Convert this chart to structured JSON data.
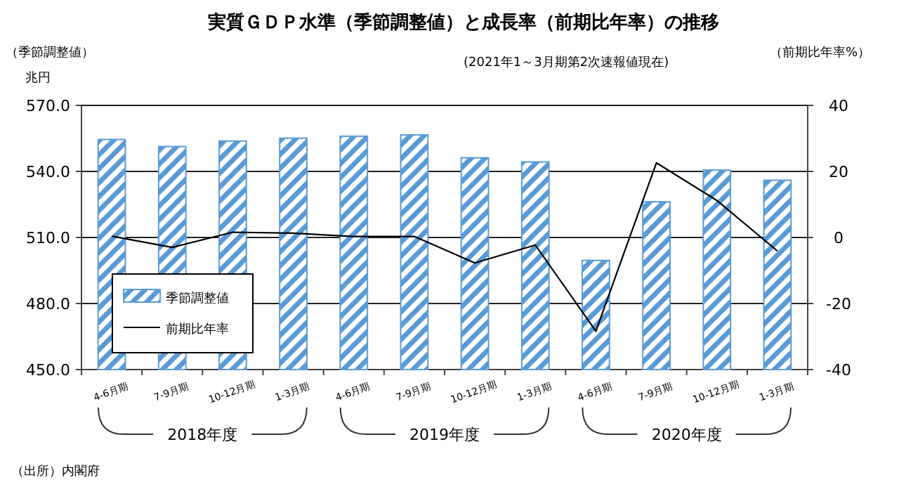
{
  "chart_data": {
    "type": "bar",
    "title": "実質ＧＤＰ水準（季節調整値）と成長率（前期比年率）の推移",
    "ylabel": "（季節調整値）",
    "y2label": "（前期比年率%）",
    "annotations": [
      "兆円",
      "(2021年1～3月期第2次速報値現在)",
      "2018年度",
      "2019年度",
      "2020年度",
      "（出所）内閣府"
    ],
    "categories": [
      "4-6月期",
      "7-9月期",
      "10-12月期",
      "1-3月期",
      "4-6月期",
      "7-9月期",
      "10-12月期",
      "1-3月期",
      "4-6月期",
      "7-9月期",
      "10-12月期",
      "1-3月期"
    ],
    "series": [
      {
        "name": "季節調整値",
        "color": "#5b9bd5",
        "values": [
          554.5,
          551.3,
          553.8,
          555.1,
          556.0,
          556.6,
          546.2,
          544.3,
          499.6,
          526.2,
          540.6,
          536.0
        ]
      },
      {
        "name": "前期比年率",
        "type": "line",
        "axis": "y2",
        "color": "#000000",
        "values": [
          0.4,
          -3.0,
          1.6,
          1.3,
          0.3,
          0.3,
          -7.7,
          -2.3,
          -28.4,
          22.6,
          11.2,
          -4.1
        ]
      }
    ],
    "ylim": [
      450,
      570
    ],
    "yticks": [
      {
        "value": 450,
        "label": "450.0"
      },
      {
        "value": 480,
        "label": "480.0"
      },
      {
        "value": 510,
        "label": "510.0"
      },
      {
        "value": 540,
        "label": "540.0"
      },
      {
        "value": 570,
        "label": "570.0"
      }
    ],
    "y2lim": [
      -40,
      40
    ],
    "y2ticks": [
      -40,
      -20,
      0,
      20,
      40
    ],
    "grid": "y",
    "legend": "left",
    "marker": "none",
    "line_style": "solid"
  }
}
